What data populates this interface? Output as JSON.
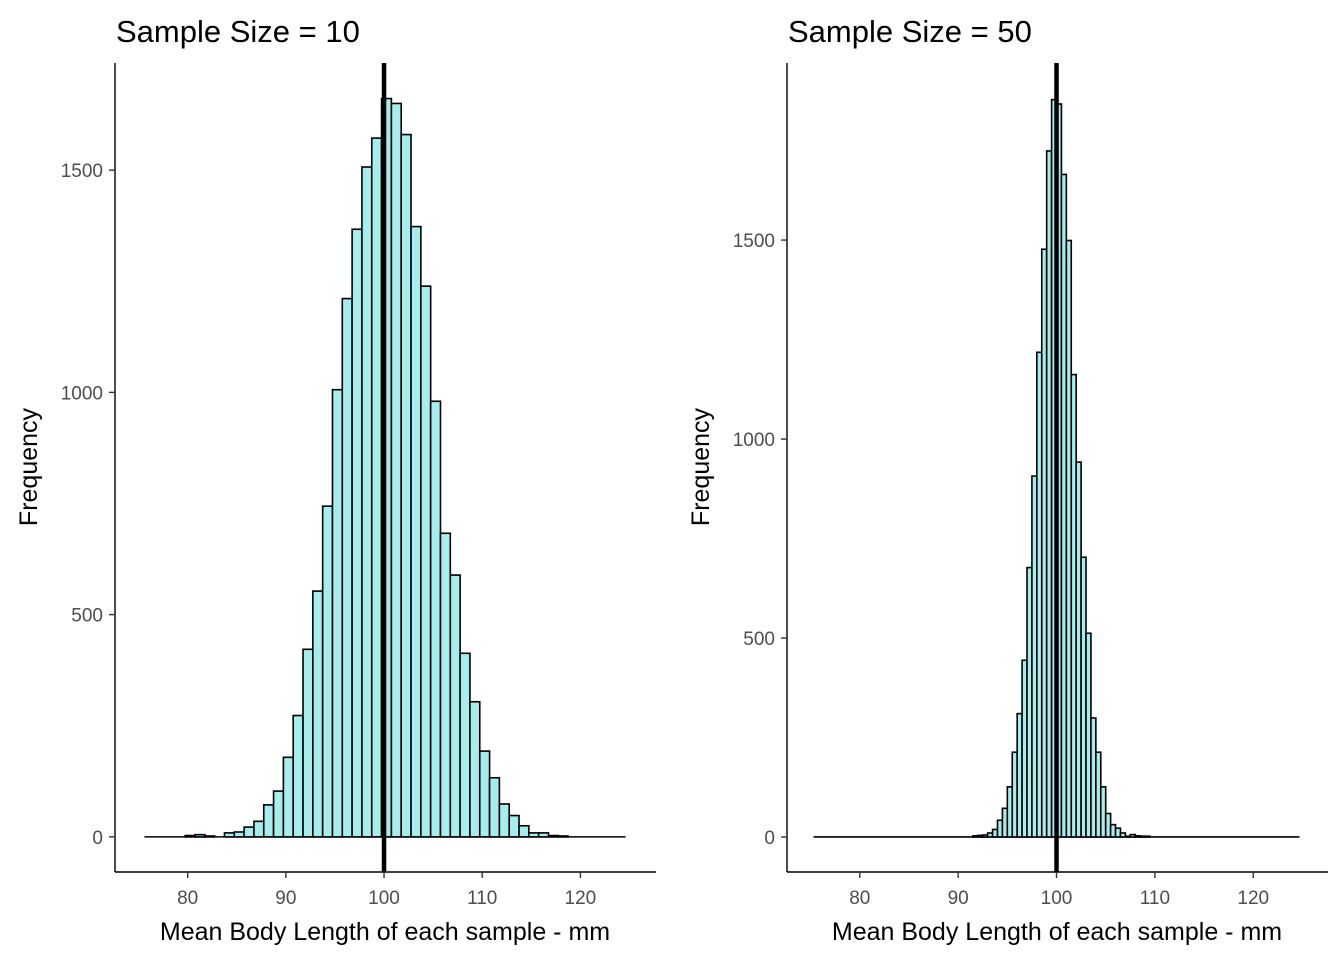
{
  "chart_data": [
    {
      "type": "bar",
      "title": "Sample Size = 10",
      "xlabel": "Mean Body Length of each sample - mm",
      "ylabel": "Frequency",
      "xlim": [
        72.6,
        127.7
      ],
      "ylim": [
        -79,
        1741
      ],
      "x_ticks": [
        80,
        90,
        100,
        110,
        120
      ],
      "y_ticks": [
        0,
        500,
        1000,
        1500
      ],
      "bin_width": 1,
      "bin_range": [
        75.6,
        124.6
      ],
      "bin_centers": [
        80.25,
        81.25,
        82.25,
        83.25,
        84.25,
        85.25,
        86.25,
        87.25,
        88.25,
        89.25,
        90.25,
        91.25,
        92.25,
        93.25,
        94.25,
        95.25,
        96.25,
        97.25,
        98.25,
        99.25,
        100.25,
        101.25,
        102.25,
        103.25,
        104.25,
        105.25,
        106.25,
        107.25,
        108.25,
        109.25,
        110.25,
        111.25,
        112.25,
        113.25,
        114.25,
        115.25,
        116.25,
        117.25,
        118.25
      ],
      "counts": [
        3,
        5,
        2,
        0,
        9,
        11,
        22,
        35,
        72,
        103,
        179,
        273,
        422,
        553,
        744,
        1006,
        1211,
        1367,
        1507,
        1572,
        1661,
        1650,
        1580,
        1373,
        1239,
        980,
        683,
        589,
        413,
        304,
        193,
        133,
        74,
        48,
        25,
        9,
        9,
        3,
        2
      ],
      "vline": 100,
      "grid": false,
      "fill_color": "#A6EEEE",
      "edge_color": "#000000"
    },
    {
      "type": "bar",
      "title": "Sample Size = 50",
      "xlabel": "Mean Body Length of each sample - mm",
      "ylabel": "Frequency",
      "xlim": [
        72.6,
        127.6
      ],
      "ylim": [
        -88,
        1945
      ],
      "x_ticks": [
        80,
        90,
        100,
        110,
        120
      ],
      "y_ticks": [
        0,
        500,
        1000,
        1500
      ],
      "bin_width": 0.5,
      "bin_range": [
        75.3,
        124.7
      ],
      "bin_centers": [
        91.75,
        92.25,
        92.75,
        93.25,
        93.75,
        94.25,
        94.75,
        95.25,
        95.75,
        96.25,
        96.75,
        97.25,
        97.75,
        98.25,
        98.75,
        99.25,
        99.75,
        100.25,
        100.75,
        101.25,
        101.75,
        102.25,
        102.75,
        103.25,
        103.75,
        104.25,
        104.75,
        105.25,
        105.75,
        106.25,
        106.75,
        107.25,
        107.75,
        108.25,
        108.75,
        109.25
      ],
      "counts": [
        3,
        4,
        5,
        10,
        19,
        42,
        72,
        126,
        213,
        310,
        444,
        677,
        907,
        1218,
        1477,
        1724,
        1853,
        1842,
        1665,
        1499,
        1162,
        942,
        703,
        512,
        299,
        213,
        126,
        59,
        31,
        22,
        10,
        2,
        6,
        3,
        2,
        2
      ],
      "vline": 100,
      "grid": false,
      "fill_color": "#A6EEEE",
      "edge_color": "#000000"
    }
  ]
}
